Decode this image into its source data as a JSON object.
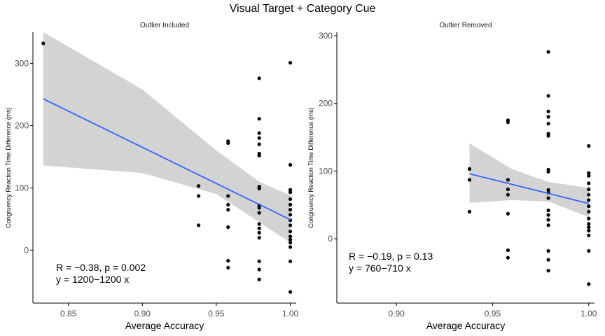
{
  "title": "Visual Target + Category Cue",
  "chart_data": [
    {
      "type": "scatter",
      "panel_title": "Outlier Included",
      "xlabel": "Average Accuracy",
      "ylabel": "Congruency Reaction Time Difference (ms)",
      "xlim": [
        0.826,
        1.004
      ],
      "ylim": [
        -85,
        350
      ],
      "xticks": [
        0.85,
        0.9,
        0.95,
        1.0
      ],
      "xtick_labels": [
        "0.85",
        "0.90",
        "0.95",
        "1.00"
      ],
      "yticks": [
        0,
        100,
        200,
        300
      ],
      "ytick_labels": [
        "0",
        "100",
        "200",
        "300"
      ],
      "grid": false,
      "points": [
        [
          0.833,
          332
        ],
        [
          0.938,
          103
        ],
        [
          0.938,
          87
        ],
        [
          0.938,
          40
        ],
        [
          0.958,
          175
        ],
        [
          0.958,
          172
        ],
        [
          0.958,
          87
        ],
        [
          0.958,
          73
        ],
        [
          0.958,
          65
        ],
        [
          0.958,
          37
        ],
        [
          0.958,
          -17
        ],
        [
          0.958,
          -28
        ],
        [
          0.979,
          276
        ],
        [
          0.979,
          211
        ],
        [
          0.979,
          188
        ],
        [
          0.979,
          180
        ],
        [
          0.979,
          170
        ],
        [
          0.979,
          155
        ],
        [
          0.979,
          152
        ],
        [
          0.979,
          102
        ],
        [
          0.979,
          99
        ],
        [
          0.979,
          72
        ],
        [
          0.979,
          68
        ],
        [
          0.979,
          60
        ],
        [
          0.979,
          42
        ],
        [
          0.979,
          35
        ],
        [
          0.979,
          28
        ],
        [
          0.979,
          20
        ],
        [
          0.979,
          -18
        ],
        [
          0.979,
          -31
        ],
        [
          0.979,
          -47
        ],
        [
          1.0,
          301
        ],
        [
          1.0,
          137
        ],
        [
          1.0,
          97
        ],
        [
          1.0,
          93
        ],
        [
          1.0,
          82
        ],
        [
          1.0,
          73
        ],
        [
          1.0,
          65
        ],
        [
          1.0,
          57
        ],
        [
          1.0,
          48
        ],
        [
          1.0,
          40
        ],
        [
          1.0,
          30
        ],
        [
          1.0,
          22
        ],
        [
          1.0,
          17
        ],
        [
          1.0,
          12
        ],
        [
          1.0,
          5
        ],
        [
          1.0,
          -18
        ],
        [
          1.0,
          -67
        ]
      ],
      "fit": {
        "x": [
          0.833,
          1.0
        ],
        "y": [
          243,
          49
        ]
      },
      "band": {
        "x": [
          0.833,
          0.9,
          0.95,
          0.979,
          1.0
        ],
        "lower": [
          136,
          124,
          90,
          45,
          12
        ],
        "upper": [
          350,
          258,
          160,
          110,
          88
        ]
      },
      "annotation": [
        "R = −0.38, p = 0.002",
        "y = 1200−1200 x"
      ]
    },
    {
      "type": "scatter",
      "panel_title": "Outlier Removed",
      "xlabel": "Average Accuracy",
      "ylabel": "Congruency Reaction Time Difference (ms)",
      "xlim": [
        0.869,
        1.003
      ],
      "ylim": [
        -95,
        305
      ],
      "xticks": [
        0.9,
        0.95,
        1.0
      ],
      "xtick_labels": [
        "0.90",
        "0.95",
        "1.00"
      ],
      "yticks": [
        0,
        100,
        200,
        300
      ],
      "ytick_labels": [
        "0",
        "100",
        "200",
        "300"
      ],
      "grid": false,
      "points": [
        [
          0.938,
          103
        ],
        [
          0.938,
          87
        ],
        [
          0.938,
          40
        ],
        [
          0.958,
          175
        ],
        [
          0.958,
          172
        ],
        [
          0.958,
          87
        ],
        [
          0.958,
          73
        ],
        [
          0.958,
          65
        ],
        [
          0.958,
          37
        ],
        [
          0.958,
          -17
        ],
        [
          0.958,
          -28
        ],
        [
          0.979,
          276
        ],
        [
          0.979,
          211
        ],
        [
          0.979,
          188
        ],
        [
          0.979,
          180
        ],
        [
          0.979,
          170
        ],
        [
          0.979,
          155
        ],
        [
          0.979,
          152
        ],
        [
          0.979,
          102
        ],
        [
          0.979,
          99
        ],
        [
          0.979,
          72
        ],
        [
          0.979,
          68
        ],
        [
          0.979,
          60
        ],
        [
          0.979,
          42
        ],
        [
          0.979,
          35
        ],
        [
          0.979,
          28
        ],
        [
          0.979,
          20
        ],
        [
          0.979,
          -18
        ],
        [
          0.979,
          -31
        ],
        [
          0.979,
          -47
        ],
        [
          1.0,
          137
        ],
        [
          1.0,
          97
        ],
        [
          1.0,
          93
        ],
        [
          1.0,
          82
        ],
        [
          1.0,
          73
        ],
        [
          1.0,
          65
        ],
        [
          1.0,
          57
        ],
        [
          1.0,
          48
        ],
        [
          1.0,
          40
        ],
        [
          1.0,
          30
        ],
        [
          1.0,
          22
        ],
        [
          1.0,
          17
        ],
        [
          1.0,
          12
        ],
        [
          1.0,
          5
        ],
        [
          1.0,
          -18
        ],
        [
          1.0,
          -67
        ]
      ],
      "fit": {
        "x": [
          0.938,
          1.0
        ],
        "y": [
          96,
          52
        ]
      },
      "band": {
        "x": [
          0.938,
          0.96,
          0.979,
          1.0
        ],
        "lower": [
          53,
          57,
          55,
          32
        ],
        "upper": [
          141,
          103,
          84,
          75
        ]
      },
      "annotation": [
        "R = −0.19, p = 0.13",
        "y = 760−710 x"
      ]
    }
  ],
  "colors": {
    "points": "#000000",
    "fit_line": "#3366FF",
    "band": "#D3D3D3",
    "axis": "#000000",
    "tick_label": "#4D4D4D"
  }
}
